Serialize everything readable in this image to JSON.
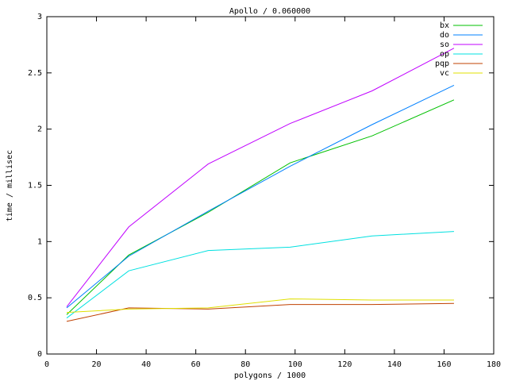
{
  "chart_data": {
    "type": "line",
    "title": "Apollo / 0.060000",
    "xlabel": "polygons / 1000",
    "ylabel": "time / millisec",
    "x": [
      8,
      33,
      65,
      98,
      131,
      164
    ],
    "series": [
      {
        "name": "bx",
        "color": "#00c000",
        "values": [
          0.35,
          0.88,
          1.26,
          1.7,
          1.94,
          2.26
        ]
      },
      {
        "name": "do",
        "color": "#0080ff",
        "values": [
          0.41,
          0.87,
          1.27,
          1.67,
          2.04,
          2.39
        ]
      },
      {
        "name": "so",
        "color": "#c000ff",
        "values": [
          0.42,
          1.13,
          1.69,
          2.05,
          2.34,
          2.72
        ]
      },
      {
        "name": "op",
        "color": "#00e0e0",
        "values": [
          0.32,
          0.74,
          0.92,
          0.95,
          1.05,
          1.09
        ]
      },
      {
        "name": "pqp",
        "color": "#c04000",
        "values": [
          0.29,
          0.41,
          0.4,
          0.44,
          0.44,
          0.45
        ]
      },
      {
        "name": "vc",
        "color": "#e0e000",
        "values": [
          0.37,
          0.4,
          0.41,
          0.49,
          0.48,
          0.48
        ]
      }
    ],
    "xlim": [
      0,
      180
    ],
    "xticks": [
      0,
      20,
      40,
      60,
      80,
      100,
      120,
      140,
      160,
      180
    ],
    "ylim": [
      0,
      3
    ],
    "yticks": [
      0,
      0.5,
      1,
      1.5,
      2,
      2.5,
      3
    ],
    "legend": "top right"
  }
}
